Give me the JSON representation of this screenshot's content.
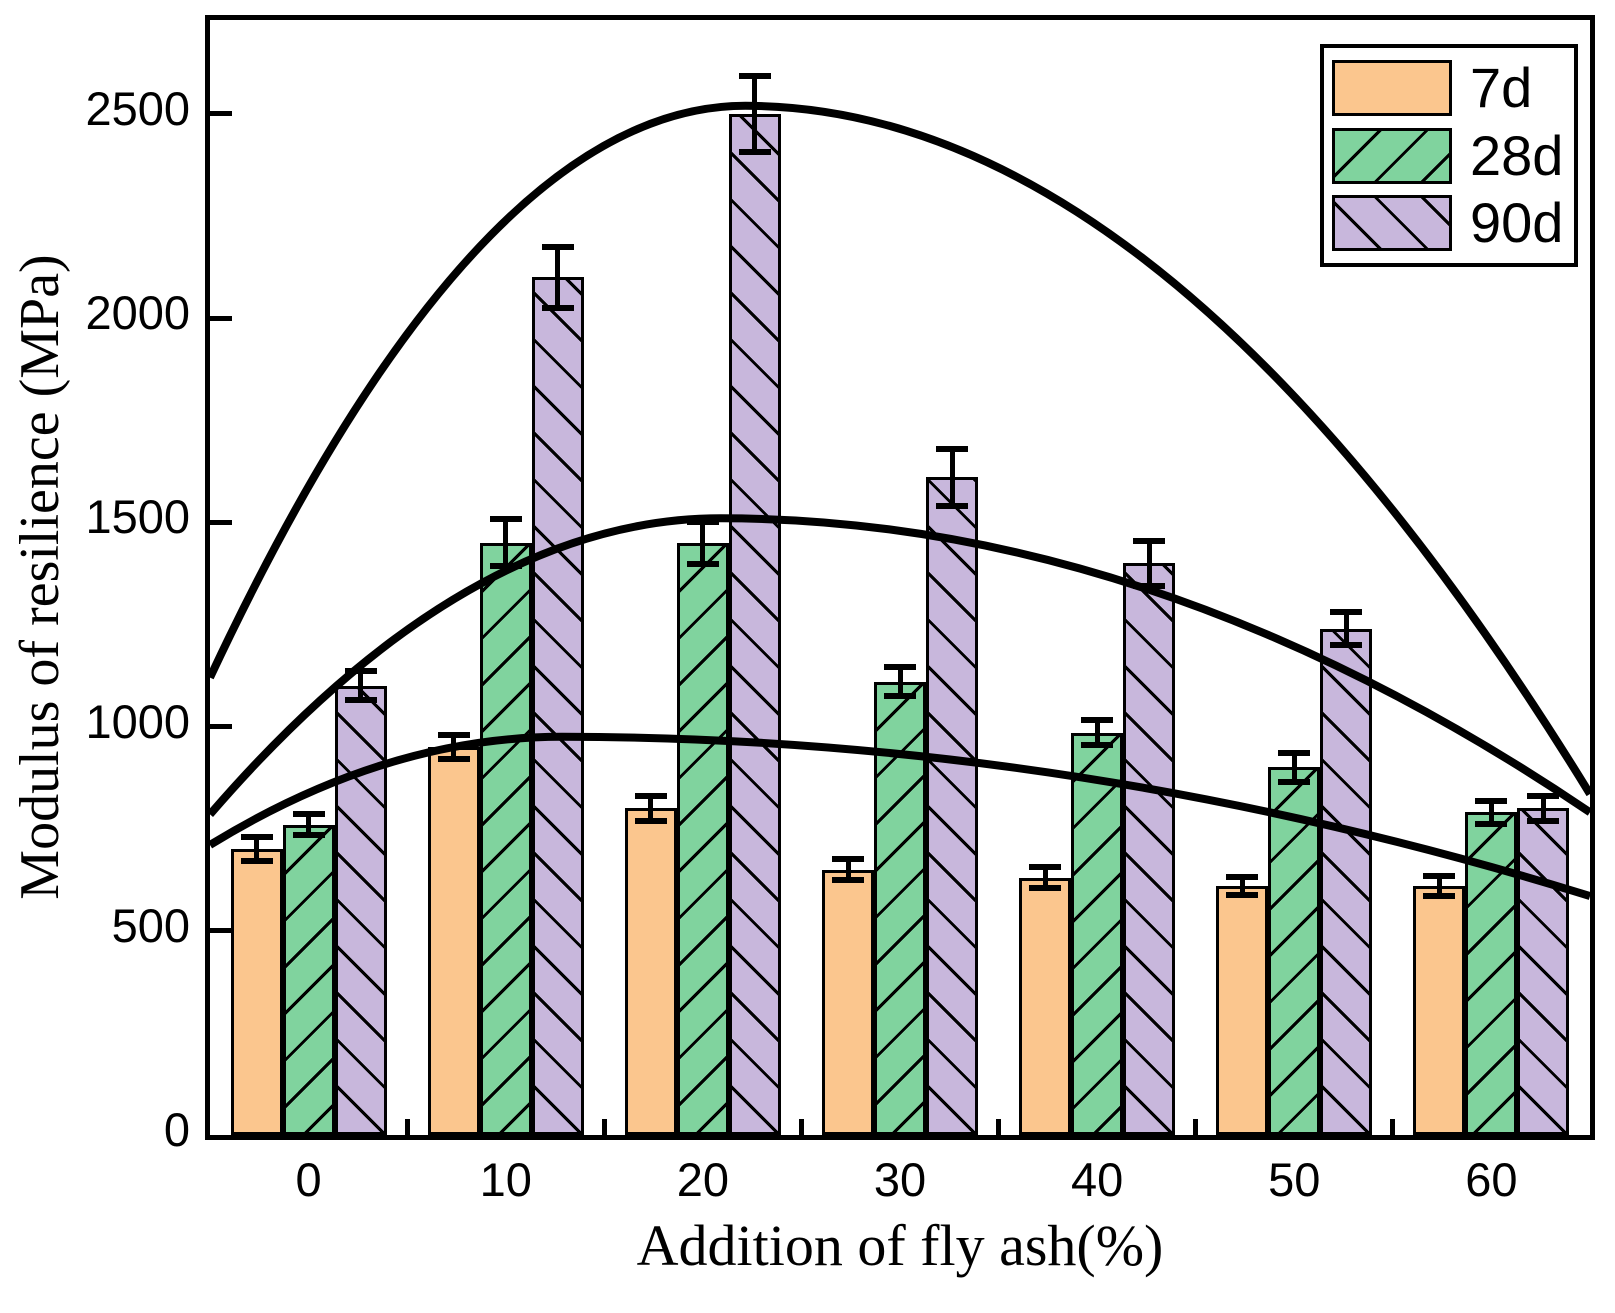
{
  "figure": {
    "background": "#ffffff",
    "frame_color": "#000000"
  },
  "chart_data": {
    "type": "bar",
    "title": "",
    "xlabel": "Addition of fly ash(%)",
    "ylabel": "Modulus of resilience (MPa)",
    "categories": [
      "0",
      "10",
      "20",
      "30",
      "40",
      "50",
      "60"
    ],
    "y_ticks": [
      0,
      500,
      1000,
      1500,
      2000,
      2500
    ],
    "ylim": [
      0,
      2730
    ],
    "grid": false,
    "legend_position": "top-right",
    "bar_edge_color": "#000000",
    "curve_color": "#000000",
    "series": [
      {
        "name": "7d",
        "color": "#FBC68E",
        "hatch": "none",
        "values": [
          700,
          950,
          800,
          650,
          630,
          610,
          610
        ],
        "errors": [
          30,
          30,
          30,
          25,
          25,
          22,
          25
        ]
      },
      {
        "name": "28d",
        "color": "#80D39E",
        "hatch": "forward-diagonal",
        "values": [
          760,
          1450,
          1450,
          1110,
          985,
          900,
          790
        ],
        "errors": [
          26,
          58,
          52,
          36,
          30,
          35,
          28
        ]
      },
      {
        "name": "90d",
        "color": "#C8B7DC",
        "hatch": "backward-diagonal",
        "values": [
          1100,
          2100,
          2500,
          1610,
          1400,
          1240,
          800
        ],
        "errors": [
          35,
          75,
          92,
          70,
          55,
          40,
          30
        ]
      }
    ],
    "fit_curves": [
      {
        "series": "7d",
        "start_mpa": 710,
        "apex_frac": 0.255,
        "apex_mpa": 975,
        "end_mpa": 585
      },
      {
        "series": "28d",
        "start_mpa": 785,
        "apex_frac": 0.37,
        "apex_mpa": 1510,
        "end_mpa": 790
      },
      {
        "series": "90d",
        "start_mpa": 1120,
        "apex_frac": 0.388,
        "apex_mpa": 2520,
        "end_mpa": 835
      }
    ]
  },
  "legend": {
    "labels": [
      "7d",
      "28d",
      "90d"
    ]
  }
}
